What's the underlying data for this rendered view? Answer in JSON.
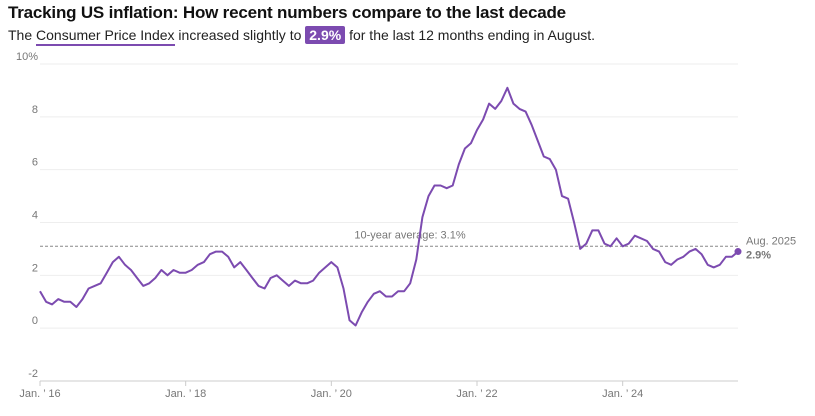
{
  "chart_data": {
    "type": "line",
    "title": "Tracking US inflation: How recent numbers compare to the last decade",
    "subtitle": {
      "before": "The ",
      "link": "Consumer Price Index",
      "middle": " increased slightly to ",
      "highlight": "2.9%",
      "after": " for the last 12 months ending in August."
    },
    "categories": [
      "Jan. ’ 16",
      null,
      null,
      null,
      null,
      null,
      null,
      null,
      null,
      null,
      null,
      null,
      null,
      null,
      null,
      null,
      null,
      null,
      null,
      null,
      null,
      null,
      null,
      null,
      "Jan. ’ 18",
      null,
      null,
      null,
      null,
      null,
      null,
      null,
      null,
      null,
      null,
      null,
      null,
      null,
      null,
      null,
      null,
      null,
      null,
      null,
      null,
      null,
      null,
      null,
      "Jan. ’ 20",
      null,
      null,
      null,
      null,
      null,
      null,
      null,
      null,
      null,
      null,
      null,
      null,
      null,
      null,
      null,
      null,
      null,
      null,
      null,
      null,
      null,
      null,
      null,
      "Jan. ’ 22",
      null,
      null,
      null,
      null,
      null,
      null,
      null,
      null,
      null,
      null,
      null,
      null,
      null,
      null,
      null,
      null,
      null,
      null,
      null,
      null,
      null,
      null,
      null,
      "Jan. ’ 24",
      null,
      null,
      null,
      null,
      null,
      null,
      null,
      null,
      null,
      null,
      null,
      null,
      null,
      null,
      null,
      null,
      null,
      null,
      null
    ],
    "series": [
      {
        "name": "Aug. 2025",
        "color": "#7c4bb0",
        "values": [
          1.4,
          1.0,
          0.9,
          1.1,
          1.0,
          1.0,
          0.8,
          1.1,
          1.5,
          1.6,
          1.7,
          2.1,
          2.5,
          2.7,
          2.4,
          2.2,
          1.9,
          1.6,
          1.7,
          1.9,
          2.2,
          2.0,
          2.2,
          2.1,
          2.1,
          2.2,
          2.4,
          2.5,
          2.8,
          2.9,
          2.9,
          2.7,
          2.3,
          2.5,
          2.2,
          1.9,
          1.6,
          1.5,
          1.9,
          2.0,
          1.8,
          1.6,
          1.8,
          1.7,
          1.7,
          1.8,
          2.1,
          2.3,
          2.5,
          2.3,
          1.5,
          0.3,
          0.1,
          0.6,
          1.0,
          1.3,
          1.4,
          1.2,
          1.2,
          1.4,
          1.4,
          1.7,
          2.6,
          4.2,
          5.0,
          5.4,
          5.4,
          5.3,
          5.4,
          6.2,
          6.8,
          7.0,
          7.5,
          7.9,
          8.5,
          8.3,
          8.6,
          9.1,
          8.5,
          8.3,
          8.2,
          7.7,
          7.1,
          6.5,
          6.4,
          6.0,
          5.0,
          4.9,
          4.0,
          3.0,
          3.2,
          3.7,
          3.7,
          3.2,
          3.1,
          3.4,
          3.1,
          3.2,
          3.5,
          3.4,
          3.3,
          3.0,
          2.9,
          2.5,
          2.4,
          2.6,
          2.7,
          2.9,
          3.0,
          2.8,
          2.4,
          2.3,
          2.4,
          2.7,
          2.7,
          2.9
        ],
        "end_label": "2.9%"
      }
    ],
    "average": {
      "value": 3.1,
      "label": "10-year average: 3.1%"
    },
    "ylim": [
      -2,
      10
    ],
    "yticks": [
      -2,
      0,
      2,
      4,
      6,
      8,
      {
        "value": 10,
        "label": "10%"
      }
    ],
    "grid": true
  }
}
